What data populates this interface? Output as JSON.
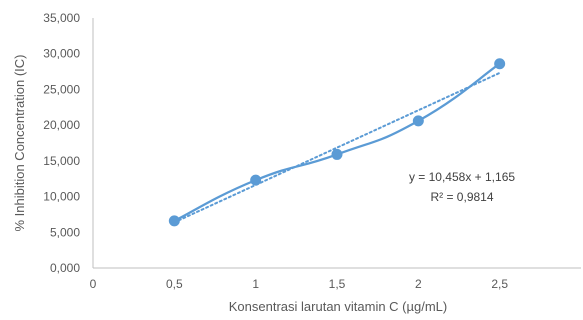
{
  "chart_data": {
    "type": "scatter",
    "title": "",
    "xlabel": "Konsentrasi larutan vitamin C (µg/mL)",
    "ylabel": "% Inhibition Concentration (IC)",
    "xlim": [
      0,
      3
    ],
    "ylim": [
      0,
      35
    ],
    "x_ticks": [
      0,
      0.5,
      1,
      1.5,
      2,
      2.5
    ],
    "x_tick_labels": [
      "0",
      "0,5",
      "1",
      "1,5",
      "2",
      "2,5"
    ],
    "y_ticks": [
      0,
      5,
      10,
      15,
      20,
      25,
      30,
      35
    ],
    "y_tick_labels": [
      "0,000",
      "5,000",
      "10,000",
      "15,000",
      "20,000",
      "25,000",
      "30,000",
      "35,000"
    ],
    "grid": false,
    "legend": "none",
    "series": [
      {
        "x": [
          0.5,
          1,
          1.5,
          2,
          2.5
        ],
        "y": [
          6.6,
          12.3,
          15.9,
          20.6,
          28.6
        ],
        "line": "smooth",
        "marker": "circle",
        "color": "#5b9bd5"
      }
    ],
    "trendline": {
      "type": "linear",
      "slope": 10.458,
      "intercept": 1.165,
      "style": "dotted",
      "color": "#5b9bd5",
      "equation_label": "y = 10,458x + 1,165",
      "r2_label": "R² = 0,9814"
    }
  }
}
